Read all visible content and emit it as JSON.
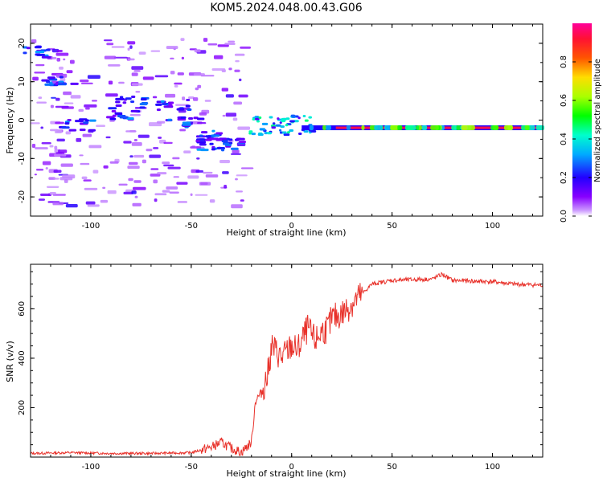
{
  "figure": {
    "title": "KOM5.2024.048.00.43.G06"
  },
  "chart_data": [
    {
      "type": "heatmap",
      "name": "spectrogram",
      "xlabel": "Height of straight line (km)",
      "ylabel": "Frequency (Hz)",
      "xlim": [
        -130,
        125
      ],
      "ylim": [
        -25,
        25
      ],
      "xticks": [
        -100,
        -50,
        0,
        50,
        100
      ],
      "yticks": [
        -20,
        -10,
        0,
        10,
        20
      ],
      "colorbar": {
        "label": "Normalized spectral amplitude",
        "range": [
          0,
          1
        ],
        "ticks": [
          0.0,
          0.2,
          0.4,
          0.6,
          0.8
        ],
        "colormap": "rainbow (purple-blue-cyan-green-yellow-red-magenta)"
      },
      "features": [
        {
          "x_range": [
            -130,
            -25
          ],
          "freq_range": [
            -20,
            22
          ],
          "amplitude": "low (scattered patches)"
        },
        {
          "x_range": [
            -20,
            0
          ],
          "freq_range": [
            -4,
            2
          ],
          "amplitude": "medium"
        },
        {
          "x_range": [
            0,
            125
          ],
          "freq_hz": -2,
          "amplitude": "high (continuous line)"
        }
      ]
    },
    {
      "type": "line",
      "name": "snr",
      "xlabel": "Height of straight line (km)",
      "ylabel": "SNR (v/v)",
      "xlim": [
        -130,
        125
      ],
      "ylim": [
        0,
        780
      ],
      "xticks": [
        -100,
        -50,
        0,
        50,
        100
      ],
      "yticks": [
        200,
        400,
        600
      ],
      "color": "#e8312a",
      "series": [
        {
          "x": [
            -130,
            -110,
            -90,
            -70,
            -50,
            -40,
            -35,
            -30,
            -25,
            -20,
            -18,
            -15,
            -12,
            -10,
            -7,
            -5,
            -2,
            0,
            3,
            5,
            8,
            10,
            12,
            15,
            18,
            20,
            25,
            30,
            35,
            40,
            50,
            60,
            70,
            75,
            80,
            90,
            100,
            110,
            125
          ],
          "y": [
            15,
            18,
            15,
            15,
            18,
            40,
            60,
            35,
            20,
            60,
            230,
            260,
            330,
            450,
            420,
            400,
            430,
            450,
            430,
            470,
            520,
            490,
            470,
            510,
            520,
            560,
            580,
            620,
            660,
            700,
            715,
            718,
            720,
            740,
            715,
            712,
            710,
            700,
            695
          ]
        }
      ]
    }
  ]
}
